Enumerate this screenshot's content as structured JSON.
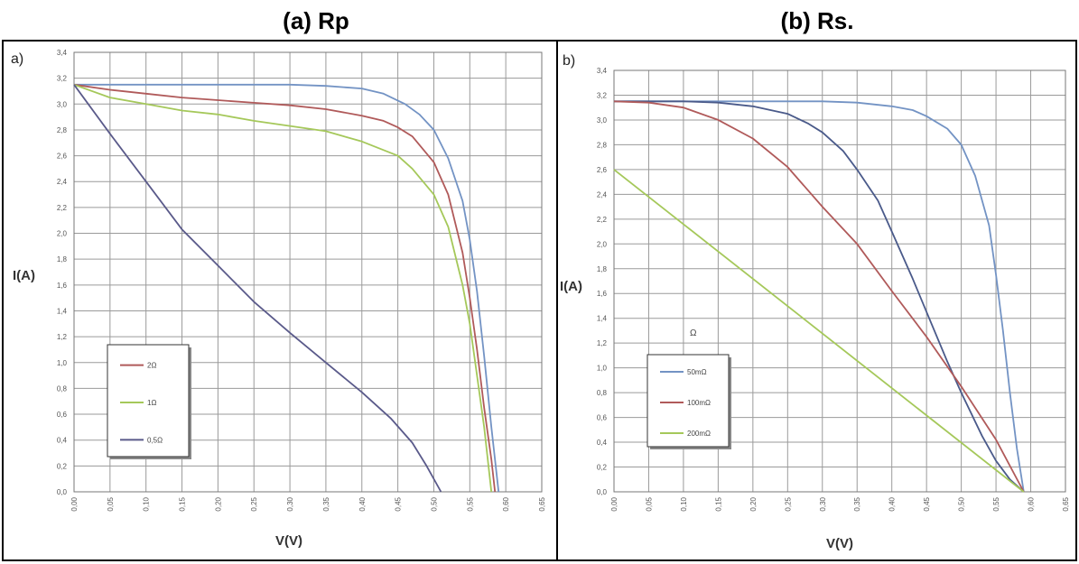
{
  "titles": {
    "a": "(a) Rp",
    "b": "(b) Rs."
  },
  "chart_data": [
    {
      "type": "line",
      "panel_label": "a)",
      "xlabel": "V(V)",
      "ylabel": "I(A)",
      "xlim": [
        0,
        0.65
      ],
      "ylim": [
        0,
        3.4
      ],
      "xticks": [
        "0,00",
        "0,05",
        "0,10",
        "0,15",
        "0,20",
        "0,25",
        "0,30",
        "0,35",
        "0,40",
        "0,45",
        "0,50",
        "0,55",
        "0,60",
        "0,65"
      ],
      "yticks": [
        "0,0",
        "0,2",
        "0,4",
        "0,6",
        "0,8",
        "1,0",
        "1,2",
        "1,4",
        "1,6",
        "1,8",
        "2,0",
        "2,2",
        "2,4",
        "2,6",
        "2,8",
        "3,0",
        "3,2",
        "3,4"
      ],
      "grid": true,
      "legend_position": "lower-left",
      "legend": [
        "2Ω",
        "1Ω",
        "0,5Ω"
      ],
      "series": [
        {
          "color": "#7393c4",
          "points": [
            [
              0,
              3.15
            ],
            [
              0.1,
              3.15
            ],
            [
              0.2,
              3.15
            ],
            [
              0.3,
              3.15
            ],
            [
              0.35,
              3.14
            ],
            [
              0.4,
              3.12
            ],
            [
              0.43,
              3.08
            ],
            [
              0.46,
              3.0
            ],
            [
              0.48,
              2.92
            ],
            [
              0.5,
              2.8
            ],
            [
              0.52,
              2.58
            ],
            [
              0.54,
              2.25
            ],
            [
              0.55,
              1.95
            ],
            [
              0.56,
              1.55
            ],
            [
              0.57,
              1.05
            ],
            [
              0.58,
              0.5
            ],
            [
              0.59,
              0.0
            ]
          ]
        },
        {
          "color": "#b05a5a",
          "points": [
            [
              0,
              3.15
            ],
            [
              0.05,
              3.11
            ],
            [
              0.1,
              3.08
            ],
            [
              0.15,
              3.05
            ],
            [
              0.2,
              3.03
            ],
            [
              0.25,
              3.01
            ],
            [
              0.3,
              2.99
            ],
            [
              0.35,
              2.96
            ],
            [
              0.4,
              2.91
            ],
            [
              0.43,
              2.87
            ],
            [
              0.45,
              2.82
            ],
            [
              0.47,
              2.75
            ],
            [
              0.5,
              2.55
            ],
            [
              0.52,
              2.3
            ],
            [
              0.54,
              1.85
            ],
            [
              0.55,
              1.5
            ],
            [
              0.56,
              1.1
            ],
            [
              0.57,
              0.65
            ],
            [
              0.58,
              0.25
            ],
            [
              0.585,
              0.0
            ]
          ]
        },
        {
          "color": "#a5c85a",
          "points": [
            [
              0,
              3.15
            ],
            [
              0.05,
              3.05
            ],
            [
              0.1,
              3.0
            ],
            [
              0.15,
              2.95
            ],
            [
              0.2,
              2.92
            ],
            [
              0.25,
              2.87
            ],
            [
              0.3,
              2.83
            ],
            [
              0.35,
              2.79
            ],
            [
              0.4,
              2.71
            ],
            [
              0.45,
              2.6
            ],
            [
              0.47,
              2.5
            ],
            [
              0.5,
              2.3
            ],
            [
              0.52,
              2.05
            ],
            [
              0.54,
              1.6
            ],
            [
              0.55,
              1.3
            ],
            [
              0.56,
              0.9
            ],
            [
              0.57,
              0.5
            ],
            [
              0.58,
              0.0
            ]
          ]
        },
        {
          "color": "#5a5a8a",
          "points": [
            [
              0,
              3.15
            ],
            [
              0.05,
              2.77
            ],
            [
              0.1,
              2.4
            ],
            [
              0.15,
              2.03
            ],
            [
              0.2,
              1.75
            ],
            [
              0.25,
              1.47
            ],
            [
              0.3,
              1.23
            ],
            [
              0.35,
              1.0
            ],
            [
              0.4,
              0.77
            ],
            [
              0.44,
              0.57
            ],
            [
              0.47,
              0.38
            ],
            [
              0.49,
              0.2
            ],
            [
              0.51,
              0.0
            ]
          ]
        }
      ]
    },
    {
      "type": "line",
      "panel_label": "b)",
      "xlabel": "V(V)",
      "ylabel": "I(A)",
      "xlim": [
        0,
        0.65
      ],
      "ylim": [
        0,
        3.4
      ],
      "xticks": [
        "0,00",
        "0,05",
        "0,10",
        "0,15",
        "0,20",
        "0,25",
        "0,30",
        "0,35",
        "0,40",
        "0,45",
        "0,50",
        "0,55",
        "0,60",
        "0,65"
      ],
      "yticks": [
        "0,0",
        "0,2",
        "0,4",
        "0,6",
        "0,8",
        "1,0",
        "1,2",
        "1,4",
        "1,6",
        "1,8",
        "2,0",
        "2,2",
        "2,4",
        "2,6",
        "2,8",
        "3,0",
        "3,2",
        "3,4"
      ],
      "grid": true,
      "legend_position": "lower-left",
      "legend": [
        "50mΩ",
        "100mΩ",
        "200mΩ"
      ],
      "annotation": "Ω",
      "series": [
        {
          "color": "#7393c4",
          "points": [
            [
              0,
              3.15
            ],
            [
              0.1,
              3.15
            ],
            [
              0.2,
              3.15
            ],
            [
              0.3,
              3.15
            ],
            [
              0.35,
              3.14
            ],
            [
              0.4,
              3.11
            ],
            [
              0.43,
              3.08
            ],
            [
              0.45,
              3.03
            ],
            [
              0.48,
              2.93
            ],
            [
              0.5,
              2.8
            ],
            [
              0.52,
              2.55
            ],
            [
              0.54,
              2.15
            ],
            [
              0.55,
              1.75
            ],
            [
              0.56,
              1.3
            ],
            [
              0.57,
              0.8
            ],
            [
              0.58,
              0.35
            ],
            [
              0.59,
              0.0
            ]
          ]
        },
        {
          "color": "#4a5a8a",
          "points": [
            [
              0,
              3.15
            ],
            [
              0.05,
              3.15
            ],
            [
              0.1,
              3.15
            ],
            [
              0.15,
              3.14
            ],
            [
              0.2,
              3.11
            ],
            [
              0.25,
              3.05
            ],
            [
              0.28,
              2.97
            ],
            [
              0.3,
              2.9
            ],
            [
              0.33,
              2.75
            ],
            [
              0.35,
              2.6
            ],
            [
              0.38,
              2.35
            ],
            [
              0.4,
              2.1
            ],
            [
              0.43,
              1.72
            ],
            [
              0.45,
              1.45
            ],
            [
              0.48,
              1.05
            ],
            [
              0.5,
              0.8
            ],
            [
              0.53,
              0.45
            ],
            [
              0.55,
              0.25
            ],
            [
              0.57,
              0.1
            ],
            [
              0.59,
              0.0
            ]
          ]
        },
        {
          "color": "#b05a5a",
          "points": [
            [
              0,
              3.15
            ],
            [
              0.05,
              3.14
            ],
            [
              0.1,
              3.1
            ],
            [
              0.15,
              3.0
            ],
            [
              0.2,
              2.85
            ],
            [
              0.25,
              2.62
            ],
            [
              0.3,
              2.3
            ],
            [
              0.35,
              2.0
            ],
            [
              0.4,
              1.62
            ],
            [
              0.45,
              1.25
            ],
            [
              0.5,
              0.85
            ],
            [
              0.55,
              0.42
            ],
            [
              0.59,
              0.0
            ]
          ]
        },
        {
          "color": "#a5c85a",
          "points": [
            [
              0,
              2.6
            ],
            [
              0.59,
              0.0
            ]
          ]
        }
      ]
    }
  ]
}
